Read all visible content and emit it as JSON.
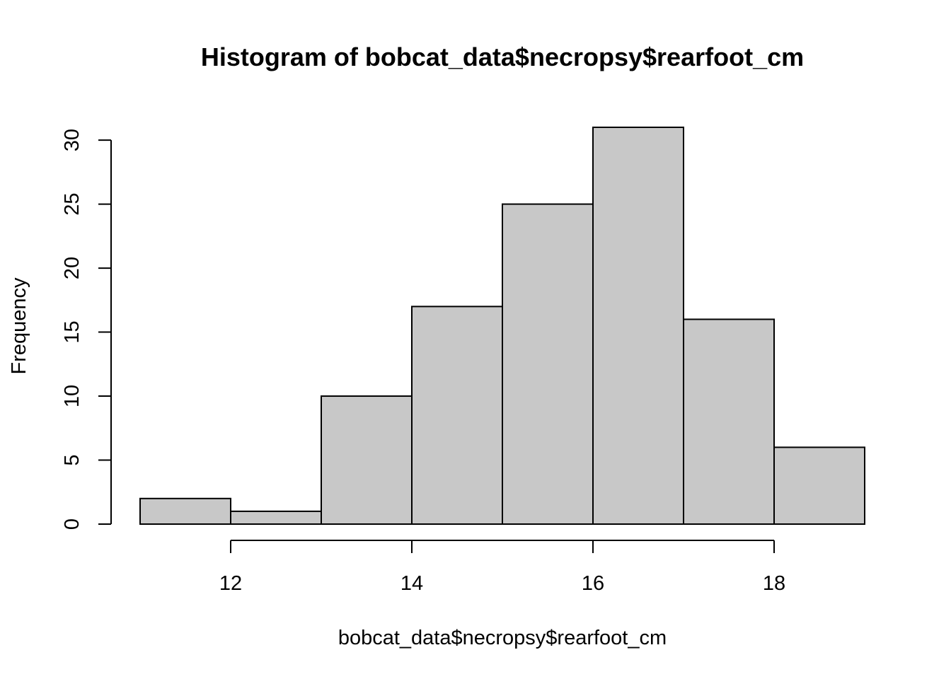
{
  "chart_data": {
    "type": "bar",
    "title": "Histogram of bobcat_data$necropsy$rearfoot_cm",
    "xlabel": "bobcat_data$necropsy$rearfoot_cm",
    "ylabel": "Frequency",
    "bins": [
      {
        "start": 11,
        "end": 12,
        "count": 2
      },
      {
        "start": 12,
        "end": 13,
        "count": 1
      },
      {
        "start": 13,
        "end": 14,
        "count": 10
      },
      {
        "start": 14,
        "end": 15,
        "count": 17
      },
      {
        "start": 15,
        "end": 16,
        "count": 25
      },
      {
        "start": 16,
        "end": 17,
        "count": 31
      },
      {
        "start": 17,
        "end": 18,
        "count": 16
      },
      {
        "start": 18,
        "end": 19,
        "count": 6
      }
    ],
    "xlim": [
      11,
      19
    ],
    "ylim": [
      0,
      31
    ],
    "x_ticks": [
      12,
      14,
      16,
      18
    ],
    "y_ticks": [
      0,
      5,
      10,
      15,
      20,
      25,
      30
    ],
    "grid": false,
    "legend": "none",
    "bar_fill": "#c8c8c8",
    "bar_stroke": "#000000"
  }
}
